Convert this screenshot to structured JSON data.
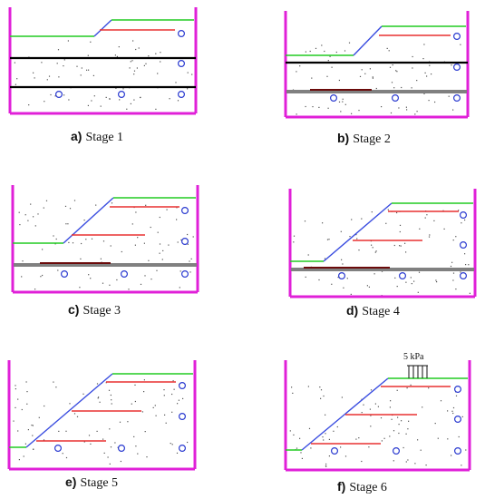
{
  "panels": [
    {
      "letter": "a)",
      "label": "Stage 1"
    },
    {
      "letter": "b)",
      "label": "Stage 2"
    },
    {
      "letter": "c)",
      "label": "Stage 3"
    },
    {
      "letter": "d)",
      "label": "Stage 4"
    },
    {
      "letter": "e)",
      "label": "Stage 5"
    },
    {
      "letter": "f)",
      "label": "Stage 6"
    }
  ],
  "load_label": "5 kPa",
  "colors": {
    "box": "#e020d8",
    "ground_surface": "#22cc22",
    "slope_face": "#3a4de0",
    "reinforcement": "#e83030",
    "wall_line": "#000000",
    "temporary_layer": "#808080",
    "temporary_layer_top": "#6b0b0b",
    "markers": "#2a3ad0"
  }
}
